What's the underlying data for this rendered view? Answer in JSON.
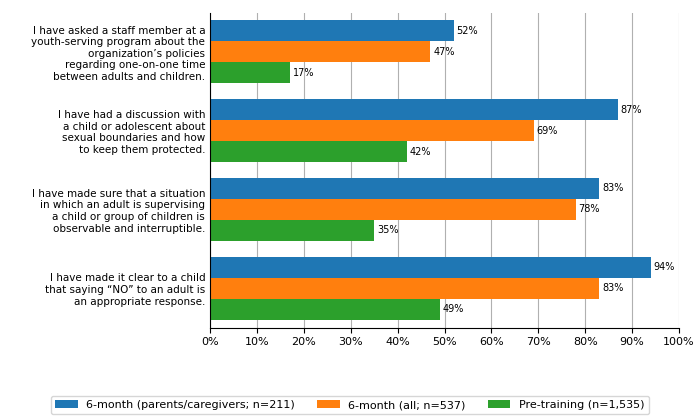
{
  "chart_data": {
    "type": "bar",
    "orientation": "horizontal",
    "categories": [
      "I have asked a staff member at a\nyouth-serving program about the\norganization’s policies\nregarding one-on-one time\nbetween adults and children.",
      "I have had a discussion with\na child or adolescent about\nsexual boundaries and how\nto keep them protected.",
      "I have made sure that a situation\nin which an adult is supervising\na child or group of children is\nobservable and interruptible.",
      "I have made it clear to a child\nthat saying “NO” to an adult is\nan appropriate response."
    ],
    "series": [
      {
        "name": "6-month (parents/caregivers; n=211)",
        "values": [
          52,
          87,
          83,
          94
        ],
        "value_labels": [
          "52%",
          "87%",
          "83%",
          "94%"
        ]
      },
      {
        "name": "6-month (all; n=537)",
        "values": [
          47,
          69,
          78,
          83
        ],
        "value_labels": [
          "47%",
          "69%",
          "78%",
          "83%"
        ]
      },
      {
        "name": "Pre-training (n=1,535)",
        "values": [
          17,
          42,
          35,
          49
        ],
        "value_labels": [
          "17%",
          "42%",
          "35%",
          "49%"
        ]
      }
    ],
    "xlim": [
      0,
      100
    ],
    "xticks": [
      {
        "value": 0,
        "label": "0%"
      },
      {
        "value": 10,
        "label": "10%"
      },
      {
        "value": 20,
        "label": "20%"
      },
      {
        "value": 30,
        "label": "30%"
      },
      {
        "value": 40,
        "label": "40%"
      },
      {
        "value": 50,
        "label": "50%"
      },
      {
        "value": 60,
        "label": "60%"
      },
      {
        "value": 70,
        "label": "70%"
      },
      {
        "value": 80,
        "label": "80%"
      },
      {
        "value": 90,
        "label": "90%"
      },
      {
        "value": 100,
        "label": "100%"
      }
    ],
    "grid": true,
    "data_labels": true,
    "legend": "lower center"
  }
}
